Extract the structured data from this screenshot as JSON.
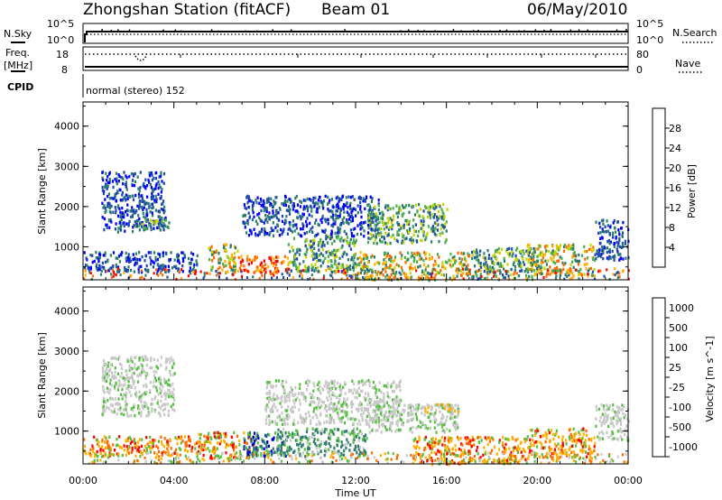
{
  "header": {
    "station": "Zhongshan Station (fitACF)",
    "beam": "Beam 01",
    "date": "06/May/2010"
  },
  "status_panel": {
    "nsky_label": "N.Sky",
    "nsearch_label": "N.Search",
    "freq_label_line1": "Freq.",
    "freq_label_line2": "[MHz]",
    "nave_label": "Nave",
    "cpid_label": "CPID",
    "nsky_ticks": [
      "10^5",
      "10^0"
    ],
    "nsearch_ticks": [
      "10^5",
      "10^0"
    ],
    "freq_ticks": [
      "18",
      "8"
    ],
    "nave_ticks": [
      "80",
      "0"
    ],
    "cpid_text": "normal (stereo) 152"
  },
  "x_axis": {
    "label": "Time UT",
    "ticks": [
      "00:00",
      "04:00",
      "08:00",
      "12:00",
      "16:00",
      "20:00",
      "00:00"
    ],
    "range_hours": [
      0,
      24
    ]
  },
  "chart_data": [
    {
      "type": "heatmap",
      "name": "power",
      "ylabel": "Slant Range [km]",
      "yticks": [
        "1000",
        "2000",
        "3000",
        "4000"
      ],
      "ylim": [
        180,
        4600
      ],
      "colorbar": {
        "label": "Power [dB]",
        "ticks": [
          "4",
          "8",
          "12",
          "16",
          "20",
          "24",
          "28"
        ],
        "range": [
          0,
          32
        ],
        "colors": [
          "#0000ff",
          "#1f4ea8",
          "#2e7d6b",
          "#4caf50",
          "#c8d400",
          "#ffb000",
          "#ff6a00",
          "#ff0000"
        ]
      },
      "regions": [
        {
          "t": [
            0.8,
            3.6
          ],
          "r": [
            1400,
            2900
          ],
          "level": "low"
        },
        {
          "t": [
            2.2,
            3.8
          ],
          "r": [
            1450,
            1700
          ],
          "level": "mid"
        },
        {
          "t": [
            0.0,
            5.0
          ],
          "r": [
            400,
            900
          ],
          "level": "low"
        },
        {
          "t": [
            5.5,
            6.8
          ],
          "r": [
            350,
            1100
          ],
          "level": "high"
        },
        {
          "t": [
            6.8,
            9.0
          ],
          "r": [
            400,
            800
          ],
          "level": "max"
        },
        {
          "t": [
            9.0,
            12.0
          ],
          "r": [
            400,
            1300
          ],
          "level": "mid"
        },
        {
          "t": [
            7.0,
            13.0
          ],
          "r": [
            1300,
            2300
          ],
          "level": "low"
        },
        {
          "t": [
            12.5,
            16.0
          ],
          "r": [
            1100,
            2100
          ],
          "level": "mid"
        },
        {
          "t": [
            12.0,
            17.0
          ],
          "r": [
            200,
            900
          ],
          "level": "high"
        },
        {
          "t": [
            17.0,
            20.0
          ],
          "r": [
            200,
            1000
          ],
          "level": "mid"
        },
        {
          "t": [
            19.5,
            22.5
          ],
          "r": [
            300,
            1100
          ],
          "level": "high"
        },
        {
          "t": [
            22.5,
            24.0
          ],
          "r": [
            700,
            1700
          ],
          "level": "low"
        }
      ]
    },
    {
      "type": "heatmap",
      "name": "velocity",
      "ylabel": "Slant Range [km]",
      "yticks": [
        "1000",
        "2000",
        "3000",
        "4000"
      ],
      "ylim": [
        180,
        4600
      ],
      "colorbar": {
        "label": "Velocity [m s^-1]",
        "ticks": [
          "1000",
          "500",
          "100",
          "25",
          "-25",
          "-100",
          "-500",
          "-1000"
        ],
        "colors": [
          "#0000cc",
          "#1f4ea8",
          "#2e7d6b",
          "#55c040",
          "#c8c8c8",
          "#ffb000",
          "#ff6a00",
          "#ff0000"
        ]
      },
      "regions": [
        {
          "t": [
            0.8,
            4.0
          ],
          "r": [
            1400,
            2900
          ],
          "level": "ground"
        },
        {
          "t": [
            0.0,
            5.0
          ],
          "r": [
            400,
            900
          ],
          "level": "away"
        },
        {
          "t": [
            5.0,
            7.5
          ],
          "r": [
            350,
            1000
          ],
          "level": "away"
        },
        {
          "t": [
            7.0,
            9.0
          ],
          "r": [
            400,
            1000
          ],
          "level": "toward"
        },
        {
          "t": [
            8.5,
            12.5
          ],
          "r": [
            400,
            1100
          ],
          "level": "slow_pos"
        },
        {
          "t": [
            8.0,
            14.0
          ],
          "r": [
            1200,
            2300
          ],
          "level": "ground"
        },
        {
          "t": [
            12.5,
            16.5
          ],
          "r": [
            1000,
            1700
          ],
          "level": "ground"
        },
        {
          "t": [
            15.0,
            16.5
          ],
          "r": [
            1500,
            1700
          ],
          "level": "slow_neg"
        },
        {
          "t": [
            14.5,
            19.5
          ],
          "r": [
            200,
            900
          ],
          "level": "away"
        },
        {
          "t": [
            19.5,
            22.5
          ],
          "r": [
            300,
            1100
          ],
          "level": "away"
        },
        {
          "t": [
            22.5,
            24.0
          ],
          "r": [
            800,
            1700
          ],
          "level": "ground"
        }
      ]
    }
  ]
}
